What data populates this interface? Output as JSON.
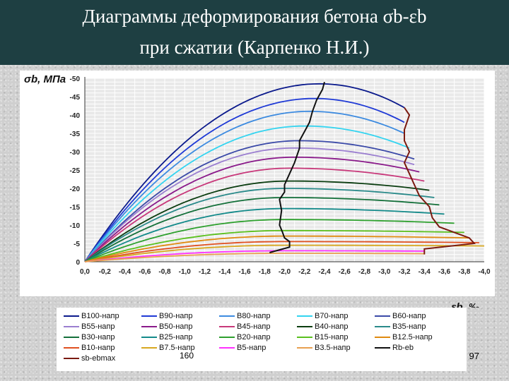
{
  "title": {
    "line1": "Диаграммы деформирования бетона σb-εb",
    "line2": "при сжатии (Карпенко Н.И.)"
  },
  "slide_number": "97",
  "overlay_label": "160",
  "chart_data": {
    "type": "line",
    "ylabel": "σb, МПа",
    "xlabel": "εb, ‰",
    "xlim": [
      0,
      -4.0
    ],
    "ylim": [
      0,
      -50
    ],
    "x_ticks": [
      "0,0",
      "-0,2",
      "-0,4",
      "-0,6",
      "-0,8",
      "-1,0",
      "-1,2",
      "-1,4",
      "-1,6",
      "-1,8",
      "-2,0",
      "-2,2",
      "-2,4",
      "-2,6",
      "-2,8",
      "-3,0",
      "-3,2",
      "-3,4",
      "-3,6",
      "-3,8",
      "-4,0"
    ],
    "y_ticks": [
      "0",
      "-5",
      "-10",
      "-15",
      "-20",
      "-25",
      "-30",
      "-35",
      "-40",
      "-45",
      "-50"
    ],
    "grid": true,
    "legend_position": "bottom",
    "series": [
      {
        "name": "B100-напр",
        "color": "#0b1a8c",
        "peak": -48.5,
        "eps_peak": -2.35,
        "eps_end": -3.2,
        "end": -42
      },
      {
        "name": "B90-напр",
        "color": "#1f3ad6",
        "peak": -44.5,
        "eps_peak": -2.3,
        "eps_end": -3.2,
        "end": -38
      },
      {
        "name": "B80-напр",
        "color": "#3d8be0",
        "peak": -41,
        "eps_peak": -2.25,
        "eps_end": -3.2,
        "end": -35
      },
      {
        "name": "B70-напр",
        "color": "#33d4f0",
        "peak": -37,
        "eps_peak": -2.2,
        "eps_end": -3.25,
        "end": -31
      },
      {
        "name": "B60-напр",
        "color": "#3b4aa8",
        "peak": -33,
        "eps_peak": -2.15,
        "eps_end": -3.3,
        "end": -28
      },
      {
        "name": "B55-напр",
        "color": "#9b7fd0",
        "peak": -31,
        "eps_peak": -2.1,
        "eps_end": -3.3,
        "end": -26.5
      },
      {
        "name": "B50-напр",
        "color": "#8a1a8a",
        "peak": -28.5,
        "eps_peak": -2.1,
        "eps_end": -3.35,
        "end": -24.5
      },
      {
        "name": "B45-напр",
        "color": "#c8387a",
        "peak": -25.5,
        "eps_peak": -2.05,
        "eps_end": -3.4,
        "end": -22
      },
      {
        "name": "B40-напр",
        "color": "#0b3d10",
        "peak": -22,
        "eps_peak": -2.05,
        "eps_end": -3.45,
        "end": -19.5
      },
      {
        "name": "B35-напр",
        "color": "#2a8a8a",
        "peak": -20,
        "eps_peak": -2.0,
        "eps_end": -3.5,
        "end": -17.5
      },
      {
        "name": "B30-напр",
        "color": "#14703a",
        "peak": -17.5,
        "eps_peak": -2.0,
        "eps_end": -3.55,
        "end": -15.5
      },
      {
        "name": "B25-напр",
        "color": "#138a8a",
        "peak": -14.5,
        "eps_peak": -2.0,
        "eps_end": -3.6,
        "end": -13
      },
      {
        "name": "B20-напр",
        "color": "#2ea02e",
        "peak": -11.5,
        "eps_peak": -2.0,
        "eps_end": -3.7,
        "end": -10.5
      },
      {
        "name": "B15-напр",
        "color": "#5ac01e",
        "peak": -8.5,
        "eps_peak": -2.0,
        "eps_end": -3.8,
        "end": -8
      },
      {
        "name": "B12.5-напр",
        "color": "#e08a10",
        "peak": -7,
        "eps_peak": -2.0,
        "eps_end": -3.85,
        "end": -6.5
      },
      {
        "name": "B10-напр",
        "color": "#e05020",
        "peak": -5.5,
        "eps_peak": -2.0,
        "eps_end": -3.95,
        "end": -5.2
      },
      {
        "name": "B7.5-напр",
        "color": "#d8a820",
        "peak": -4.5,
        "eps_peak": -2.0,
        "eps_end": -4.0,
        "end": -4.3
      },
      {
        "name": "B5-напр",
        "color": "#ff30ff",
        "peak": -3,
        "eps_peak": -2.0,
        "eps_end": -3.4,
        "end": -2.9
      },
      {
        "name": "B3.5-напр",
        "color": "#e8a050",
        "peak": -2.3,
        "eps_peak": -2.0,
        "eps_end": -3.4,
        "end": -2.2
      }
    ],
    "rb_eb": {
      "name": "Rb-eb",
      "color": "#111111",
      "points": [
        [
          -1.85,
          -2.5
        ],
        [
          -2.05,
          -4
        ],
        [
          -2.05,
          -5.5
        ],
        [
          -2.0,
          -6.5
        ],
        [
          -1.98,
          -8
        ],
        [
          -1.95,
          -10
        ],
        [
          -1.97,
          -14
        ],
        [
          -1.95,
          -17
        ],
        [
          -2.0,
          -19
        ],
        [
          -2.0,
          -21
        ],
        [
          -2.05,
          -24
        ],
        [
          -2.1,
          -27
        ],
        [
          -2.15,
          -31
        ],
        [
          -2.15,
          -33
        ],
        [
          -2.2,
          -35.5
        ],
        [
          -2.25,
          -38
        ],
        [
          -2.28,
          -41
        ],
        [
          -2.32,
          -44
        ],
        [
          -2.38,
          -47
        ],
        [
          -2.4,
          -49
        ]
      ]
    },
    "sb_ebmax": {
      "name": "sb-ebmax",
      "color": "#7a1a10",
      "points": [
        [
          -3.4,
          -2
        ],
        [
          -3.4,
          -3.5
        ],
        [
          -3.9,
          -5
        ],
        [
          -3.85,
          -6.5
        ],
        [
          -3.7,
          -8
        ],
        [
          -3.55,
          -9.5
        ],
        [
          -3.48,
          -12
        ],
        [
          -3.45,
          -15
        ],
        [
          -3.35,
          -18
        ],
        [
          -3.3,
          -21
        ],
        [
          -3.25,
          -24
        ],
        [
          -3.2,
          -27
        ],
        [
          -3.25,
          -30
        ],
        [
          -3.2,
          -33
        ],
        [
          -3.2,
          -36
        ],
        [
          -3.25,
          -40
        ],
        [
          -3.2,
          -42
        ]
      ]
    }
  }
}
